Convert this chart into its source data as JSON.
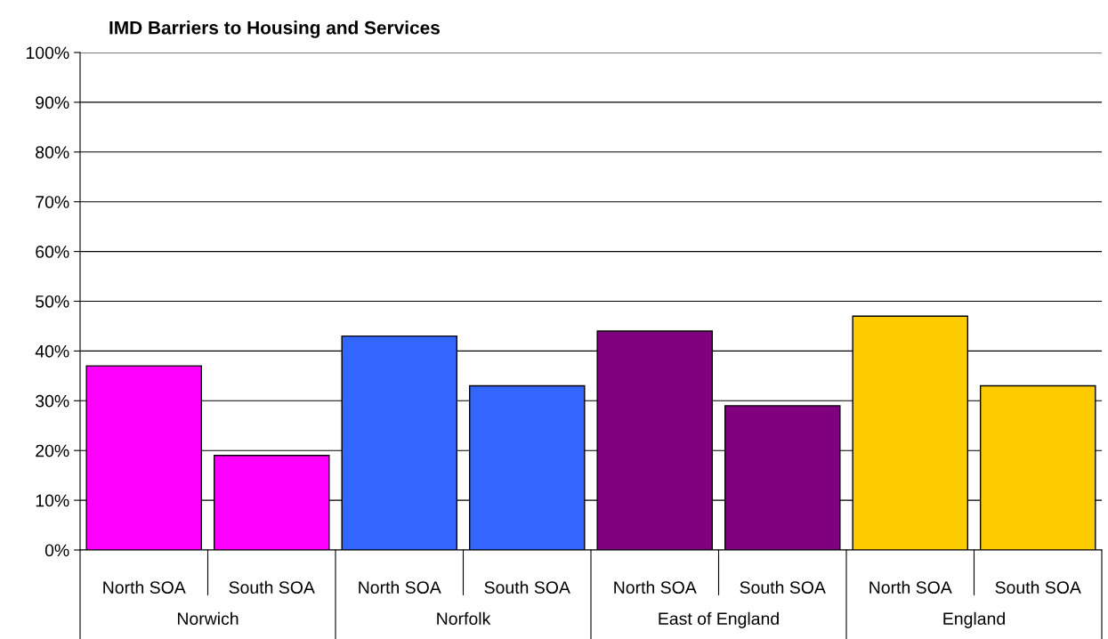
{
  "chart_data": {
    "type": "bar",
    "title": "IMD Barriers to Housing and Services",
    "categories": [
      "North SOA",
      "South SOA",
      "North SOA",
      "South SOA",
      "North SOA",
      "South SOA",
      "North SOA",
      "South SOA"
    ],
    "values": [
      37,
      19,
      43,
      33,
      44,
      29,
      47,
      33
    ],
    "colors": [
      "#ff00ff",
      "#ff00ff",
      "#3366ff",
      "#3366ff",
      "#800080",
      "#800080",
      "#ffcc00",
      "#ffcc00"
    ],
    "annotations": [
      "Norwich",
      "Norfolk",
      "East of England",
      "England"
    ],
    "ylim": [
      0,
      100
    ],
    "yticks": [
      {
        "value": 0,
        "label": "0%"
      },
      {
        "value": 10,
        "label": "10%"
      },
      {
        "value": 20,
        "label": "20%"
      },
      {
        "value": 30,
        "label": "30%"
      },
      {
        "value": 40,
        "label": "40%"
      },
      {
        "value": 50,
        "label": "50%"
      },
      {
        "value": 60,
        "label": "60%"
      },
      {
        "value": 70,
        "label": "70%"
      },
      {
        "value": 80,
        "label": "80%"
      },
      {
        "value": 90,
        "label": "90%"
      },
      {
        "value": 100,
        "label": "100%"
      }
    ],
    "grid": "y",
    "legend": false
  }
}
